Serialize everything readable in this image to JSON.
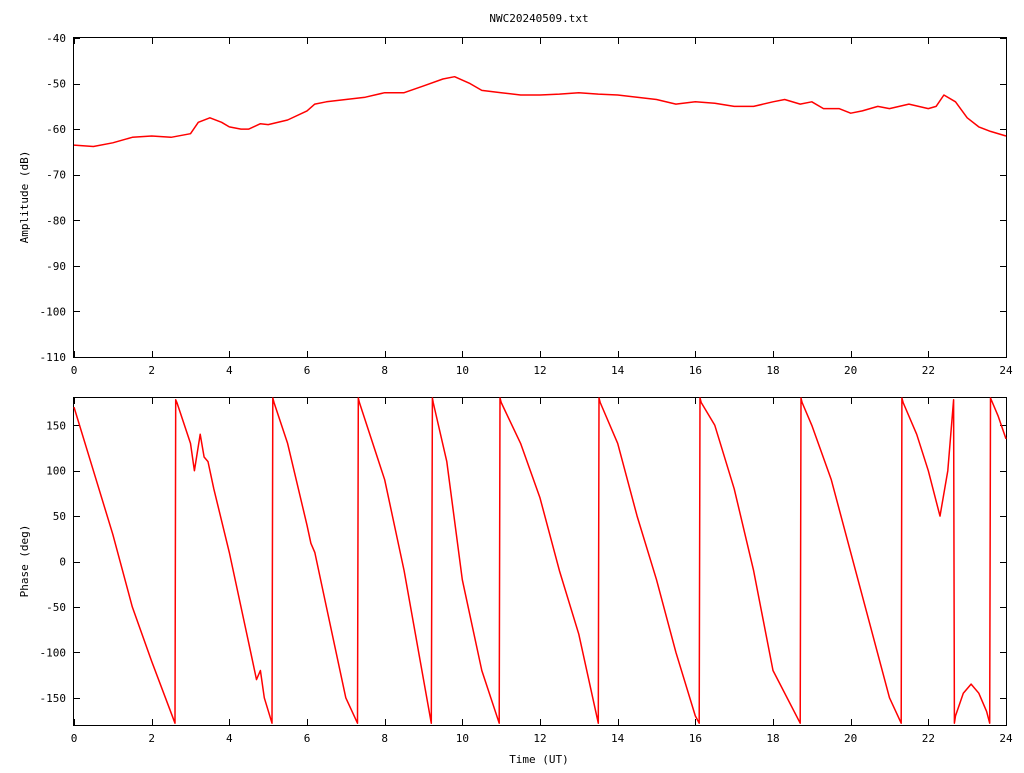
{
  "title": "NWC20240509.txt",
  "chart_data": [
    {
      "type": "line",
      "ylabel": "Amplitude (dB)",
      "xlabel": "",
      "xlim": [
        0,
        24
      ],
      "ylim": [
        -110,
        -40
      ],
      "xticks": [
        "0",
        "2",
        "4",
        "6",
        "8",
        "10",
        "12",
        "14",
        "16",
        "18",
        "20",
        "22",
        "24"
      ],
      "yticks": [
        "-40",
        "-50",
        "-60",
        "-70",
        "-80",
        "-90",
        "-100",
        "-110"
      ],
      "grid": false,
      "series": [
        {
          "color": "#ff0000",
          "x": [
            0,
            0.5,
            1.0,
            1.5,
            2.0,
            2.5,
            3.0,
            3.2,
            3.5,
            3.8,
            4.0,
            4.3,
            4.5,
            4.8,
            5.0,
            5.5,
            6.0,
            6.2,
            6.5,
            7.0,
            7.5,
            8.0,
            8.5,
            9.0,
            9.5,
            9.8,
            10.2,
            10.5,
            11.0,
            11.5,
            12.0,
            12.5,
            13.0,
            13.5,
            14.0,
            14.5,
            15.0,
            15.5,
            16.0,
            16.5,
            17.0,
            17.5,
            18.0,
            18.3,
            18.7,
            19.0,
            19.3,
            19.7,
            20.0,
            20.3,
            20.7,
            21.0,
            21.5,
            22.0,
            22.2,
            22.4,
            22.7,
            23.0,
            23.3,
            23.6,
            24.0
          ],
          "y": [
            -63.5,
            -63.8,
            -63.0,
            -61.8,
            -61.5,
            -61.8,
            -61.0,
            -58.5,
            -57.5,
            -58.5,
            -59.5,
            -60.0,
            -60.0,
            -58.8,
            -59.0,
            -58.0,
            -56.0,
            -54.5,
            -54.0,
            -53.5,
            -53.0,
            -52.0,
            -52.0,
            -50.5,
            -49.0,
            -48.5,
            -50.0,
            -51.5,
            -52.0,
            -52.5,
            -52.5,
            -52.3,
            -52.0,
            -52.3,
            -52.5,
            -53.0,
            -53.5,
            -54.5,
            -54.0,
            -54.3,
            -55.0,
            -55.0,
            -54.0,
            -53.5,
            -54.5,
            -54.0,
            -55.5,
            -55.5,
            -56.5,
            -56.0,
            -55.0,
            -55.5,
            -54.5,
            -55.5,
            -55.0,
            -52.5,
            -54.0,
            -57.5,
            -59.5,
            -60.5,
            -61.5
          ]
        }
      ]
    },
    {
      "type": "line",
      "ylabel": "Phase (deg)",
      "xlabel": "Time (UT)",
      "xlim": [
        0,
        24
      ],
      "ylim": [
        -180,
        180
      ],
      "xticks": [
        "0",
        "2",
        "4",
        "6",
        "8",
        "10",
        "12",
        "14",
        "16",
        "18",
        "20",
        "22",
        "24"
      ],
      "yticks": [
        "150",
        "100",
        "50",
        "0",
        "-50",
        "-100",
        "-150"
      ],
      "grid": false,
      "series": [
        {
          "color": "#ff0000",
          "x": [
            0,
            0.5,
            1.0,
            1.5,
            2.0,
            2.6,
            2.62,
            2.65,
            3.0,
            3.1,
            3.25,
            3.35,
            3.45,
            3.6,
            4.0,
            4.5,
            4.7,
            4.8,
            4.9,
            5.1,
            5.12,
            5.15,
            5.5,
            6.0,
            6.1,
            6.2,
            6.5,
            7.0,
            7.3,
            7.32,
            7.35,
            8.0,
            8.5,
            9.2,
            9.23,
            9.25,
            9.6,
            10.0,
            10.5,
            10.95,
            10.97,
            11.0,
            11.5,
            12.0,
            12.5,
            13.0,
            13.5,
            13.52,
            13.55,
            14.0,
            14.5,
            15.0,
            15.5,
            16.0,
            16.1,
            16.12,
            16.15,
            16.5,
            17.0,
            17.5,
            18.0,
            18.7,
            18.72,
            18.75,
            19.0,
            19.5,
            20.0,
            20.5,
            21.0,
            21.3,
            21.32,
            21.35,
            21.7,
            22.0,
            22.3,
            22.5,
            22.65,
            22.67,
            22.7,
            22.9,
            23.1,
            23.3,
            23.5,
            23.58,
            23.6,
            23.8,
            24.0
          ],
          "y": [
            170,
            100,
            30,
            -50,
            -110,
            -178,
            178,
            175,
            130,
            100,
            140,
            115,
            110,
            80,
            10,
            -90,
            -130,
            -120,
            -150,
            -178,
            180,
            175,
            130,
            40,
            20,
            10,
            -50,
            -150,
            -178,
            180,
            175,
            90,
            -10,
            -178,
            180,
            175,
            110,
            -20,
            -120,
            -178,
            180,
            175,
            130,
            70,
            -10,
            -80,
            -178,
            180,
            175,
            130,
            50,
            -20,
            -100,
            -170,
            -178,
            180,
            175,
            150,
            80,
            -10,
            -120,
            -178,
            180,
            175,
            150,
            90,
            10,
            -70,
            -150,
            -178,
            180,
            175,
            140,
            100,
            50,
            100,
            178,
            -178,
            -170,
            -145,
            -135,
            -145,
            -165,
            -178,
            180,
            160,
            135
          ]
        }
      ]
    }
  ]
}
